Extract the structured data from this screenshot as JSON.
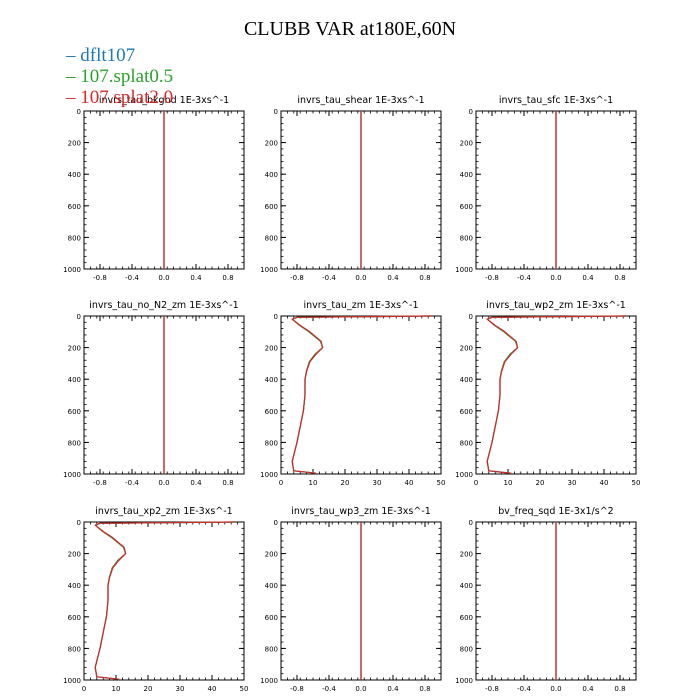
{
  "figure": {
    "title": "CLUBB VAR at180E,60N"
  },
  "legend": [
    {
      "label": "dflt107",
      "color": "#1f77b4"
    },
    {
      "label": "107.splat0.5",
      "color": "#2ca02c"
    },
    {
      "label": "107.splat2.0",
      "color": "#d62728"
    }
  ],
  "chart_data": [
    {
      "type": "line",
      "title": "invrs_tau_bkgnd   1E-3xs^-1",
      "xlim": [
        -1,
        1
      ],
      "ylim": [
        1000,
        0
      ],
      "xticks": [
        -0.8,
        -0.4,
        0.0,
        0.4,
        0.8
      ],
      "xtick_labels": [
        "-0.8",
        "-0.4",
        "0.0",
        "0.4",
        "0.8"
      ],
      "yticks": [
        0,
        200,
        400,
        600,
        800,
        1000
      ],
      "ytick_labels": [
        "0",
        "200",
        "400",
        "600",
        "800",
        "1000"
      ],
      "series": [
        {
          "color": "#1f77b4",
          "x": [
            0,
            0
          ],
          "y": [
            0,
            1000
          ]
        },
        {
          "color": "#2ca02c",
          "x": [
            0,
            0
          ],
          "y": [
            0,
            1000
          ]
        },
        {
          "color": "#d62728",
          "x": [
            0,
            0
          ],
          "y": [
            0,
            1000
          ]
        }
      ]
    },
    {
      "type": "line",
      "title": "invrs_tau_shear   1E-3xs^-1",
      "xlim": [
        -1,
        1
      ],
      "ylim": [
        1000,
        0
      ],
      "xticks": [
        -0.8,
        -0.4,
        0.0,
        0.4,
        0.8
      ],
      "xtick_labels": [
        "-0.8",
        "-0.4",
        "0.0",
        "0.4",
        "0.8"
      ],
      "yticks": [
        0,
        200,
        400,
        600,
        800,
        1000
      ],
      "ytick_labels": [
        "0",
        "200",
        "400",
        "600",
        "800",
        "1000"
      ],
      "series": [
        {
          "color": "#1f77b4",
          "x": [
            0,
            0
          ],
          "y": [
            0,
            1000
          ]
        },
        {
          "color": "#2ca02c",
          "x": [
            0,
            0
          ],
          "y": [
            0,
            1000
          ]
        },
        {
          "color": "#d62728",
          "x": [
            0,
            0
          ],
          "y": [
            0,
            1000
          ]
        }
      ]
    },
    {
      "type": "line",
      "title": "invrs_tau_sfc   1E-3xs^-1",
      "xlim": [
        -1,
        1
      ],
      "ylim": [
        1000,
        0
      ],
      "xticks": [
        -0.8,
        -0.4,
        0.0,
        0.4,
        0.8
      ],
      "xtick_labels": [
        "-0.8",
        "-0.4",
        "0.0",
        "0.4",
        "0.8"
      ],
      "yticks": [
        0,
        200,
        400,
        600,
        800,
        1000
      ],
      "ytick_labels": [
        "0",
        "200",
        "400",
        "600",
        "800",
        "1000"
      ],
      "series": [
        {
          "color": "#1f77b4",
          "x": [
            0,
            0
          ],
          "y": [
            0,
            1000
          ]
        },
        {
          "color": "#2ca02c",
          "x": [
            0,
            0
          ],
          "y": [
            0,
            1000
          ]
        },
        {
          "color": "#d62728",
          "x": [
            0,
            0
          ],
          "y": [
            0,
            1000
          ]
        }
      ]
    },
    {
      "type": "line",
      "title": "invrs_tau_no_N2_zm   1E-3xs^-1",
      "xlim": [
        -1,
        1
      ],
      "ylim": [
        1000,
        0
      ],
      "xticks": [
        -0.8,
        -0.4,
        0.0,
        0.4,
        0.8
      ],
      "xtick_labels": [
        "-0.8",
        "-0.4",
        "0.0",
        "0.4",
        "0.8"
      ],
      "yticks": [
        0,
        200,
        400,
        600,
        800,
        1000
      ],
      "ytick_labels": [
        "0",
        "200",
        "400",
        "600",
        "800",
        "1000"
      ],
      "series": [
        {
          "color": "#1f77b4",
          "x": [
            0,
            0
          ],
          "y": [
            0,
            1000
          ]
        },
        {
          "color": "#2ca02c",
          "x": [
            0,
            0
          ],
          "y": [
            0,
            1000
          ]
        },
        {
          "color": "#d62728",
          "x": [
            0,
            0
          ],
          "y": [
            0,
            1000
          ]
        }
      ]
    },
    {
      "type": "line",
      "title": "invrs_tau_zm   1E-3xs^-1",
      "xlim": [
        0,
        50
      ],
      "ylim": [
        1000,
        0
      ],
      "xticks": [
        0,
        10,
        20,
        30,
        40,
        50
      ],
      "xtick_labels": [
        "0",
        "10",
        "20",
        "30",
        "40",
        "50"
      ],
      "yticks": [
        0,
        200,
        400,
        600,
        800,
        1000
      ],
      "ytick_labels": [
        "0",
        "200",
        "400",
        "600",
        "800",
        "1000"
      ],
      "series": [
        {
          "color": "#1f77b4",
          "x": [
            47,
            5,
            3.5,
            6,
            9,
            12.5,
            13,
            11,
            9,
            8,
            7.5,
            7.5,
            7,
            6,
            5,
            3.5,
            4,
            11
          ],
          "y": [
            0,
            8,
            20,
            60,
            100,
            160,
            200,
            240,
            290,
            350,
            400,
            500,
            600,
            700,
            800,
            920,
            980,
            995
          ]
        },
        {
          "color": "#2ca02c",
          "x": [
            47,
            5,
            3.5,
            5.8,
            8.7,
            12.3,
            13,
            10.7,
            8.8,
            7.9,
            7.5,
            7.5,
            7,
            6,
            5,
            3.5,
            4,
            11
          ],
          "y": [
            0,
            8,
            20,
            60,
            100,
            160,
            200,
            240,
            290,
            350,
            400,
            500,
            600,
            700,
            800,
            920,
            980,
            995
          ]
        },
        {
          "color": "#d62728",
          "x": [
            47,
            5,
            3.5,
            6,
            9,
            12.5,
            13,
            11,
            9,
            8,
            7.5,
            7.5,
            7,
            6,
            5,
            3.5,
            4,
            11
          ],
          "y": [
            0,
            8,
            20,
            60,
            100,
            160,
            200,
            240,
            290,
            350,
            400,
            500,
            600,
            700,
            800,
            920,
            980,
            995
          ]
        }
      ]
    },
    {
      "type": "line",
      "title": "invrs_tau_wp2_zm   1E-3xs^-1",
      "xlim": [
        0,
        50
      ],
      "ylim": [
        1000,
        0
      ],
      "xticks": [
        0,
        10,
        20,
        30,
        40,
        50
      ],
      "xtick_labels": [
        "0",
        "10",
        "20",
        "30",
        "40",
        "50"
      ],
      "yticks": [
        0,
        200,
        400,
        600,
        800,
        1000
      ],
      "ytick_labels": [
        "0",
        "200",
        "400",
        "600",
        "800",
        "1000"
      ],
      "series": [
        {
          "color": "#1f77b4",
          "x": [
            47,
            5,
            3.5,
            6,
            9,
            12.5,
            13,
            11,
            9,
            8,
            7.5,
            7.5,
            7,
            6,
            5,
            3.5,
            4,
            11
          ],
          "y": [
            0,
            8,
            20,
            60,
            100,
            160,
            200,
            240,
            290,
            350,
            400,
            500,
            600,
            700,
            800,
            920,
            980,
            995
          ]
        },
        {
          "color": "#2ca02c",
          "x": [
            47,
            5,
            3.5,
            5.8,
            8.7,
            12.3,
            13,
            10.7,
            8.8,
            7.9,
            7.5,
            7.5,
            7,
            6,
            5,
            3.5,
            4,
            11
          ],
          "y": [
            0,
            8,
            20,
            60,
            100,
            160,
            200,
            240,
            290,
            350,
            400,
            500,
            600,
            700,
            800,
            920,
            980,
            995
          ]
        },
        {
          "color": "#d62728",
          "x": [
            47,
            5,
            3.5,
            6,
            9,
            12.5,
            13,
            11,
            9,
            8,
            7.5,
            7.5,
            7,
            6,
            5,
            3.5,
            4,
            11
          ],
          "y": [
            0,
            8,
            20,
            60,
            100,
            160,
            200,
            240,
            290,
            350,
            400,
            500,
            600,
            700,
            800,
            920,
            980,
            995
          ]
        }
      ]
    },
    {
      "type": "line",
      "title": "invrs_tau_xp2_zm   1E-3xs^-1",
      "xlim": [
        0,
        50
      ],
      "ylim": [
        1000,
        0
      ],
      "xticks": [
        0,
        10,
        20,
        30,
        40,
        50
      ],
      "xtick_labels": [
        "0",
        "10",
        "20",
        "30",
        "40",
        "50"
      ],
      "yticks": [
        0,
        200,
        400,
        600,
        800,
        1000
      ],
      "ytick_labels": [
        "0",
        "200",
        "400",
        "600",
        "800",
        "1000"
      ],
      "series": [
        {
          "color": "#1f77b4",
          "x": [
            47,
            5,
            3.5,
            6,
            9,
            12.5,
            13,
            11,
            9,
            8,
            7.5,
            7.5,
            7,
            6,
            5,
            3.5,
            4,
            11
          ],
          "y": [
            0,
            8,
            20,
            60,
            100,
            160,
            200,
            240,
            290,
            350,
            400,
            500,
            600,
            700,
            800,
            920,
            980,
            995
          ]
        },
        {
          "color": "#2ca02c",
          "x": [
            47,
            5,
            3.5,
            5.8,
            8.7,
            12.3,
            13,
            10.7,
            8.8,
            7.9,
            7.5,
            7.5,
            7,
            6,
            5,
            3.5,
            4,
            11
          ],
          "y": [
            0,
            8,
            20,
            60,
            100,
            160,
            200,
            240,
            290,
            350,
            400,
            500,
            600,
            700,
            800,
            920,
            980,
            995
          ]
        },
        {
          "color": "#d62728",
          "x": [
            47,
            5,
            3.5,
            6,
            9,
            12.5,
            13,
            11,
            9,
            8,
            7.5,
            7.5,
            7,
            6,
            5,
            3.5,
            4,
            11
          ],
          "y": [
            0,
            8,
            20,
            60,
            100,
            160,
            200,
            240,
            290,
            350,
            400,
            500,
            600,
            700,
            800,
            920,
            980,
            995
          ]
        }
      ]
    },
    {
      "type": "line",
      "title": "invrs_tau_wp3_zm   1E-3xs^-1",
      "xlim": [
        -1,
        1
      ],
      "ylim": [
        1000,
        0
      ],
      "xticks": [
        -0.8,
        -0.4,
        0.0,
        0.4,
        0.8
      ],
      "xtick_labels": [
        "-0.8",
        "-0.4",
        "0.0",
        "0.4",
        "0.8"
      ],
      "yticks": [
        0,
        200,
        400,
        600,
        800,
        1000
      ],
      "ytick_labels": [
        "0",
        "200",
        "400",
        "600",
        "800",
        "1000"
      ],
      "series": [
        {
          "color": "#1f77b4",
          "x": [
            0,
            0
          ],
          "y": [
            0,
            1000
          ]
        },
        {
          "color": "#2ca02c",
          "x": [
            0,
            0
          ],
          "y": [
            0,
            1000
          ]
        },
        {
          "color": "#d62728",
          "x": [
            0,
            0
          ],
          "y": [
            0,
            1000
          ]
        }
      ]
    },
    {
      "type": "line",
      "title": "bv_freq_sqd   1E-3x1/s^2",
      "xlim": [
        -1,
        1
      ],
      "ylim": [
        1000,
        0
      ],
      "xticks": [
        -0.8,
        -0.4,
        0.0,
        0.4,
        0.8
      ],
      "xtick_labels": [
        "-0.8",
        "-0.4",
        "0.0",
        "0.4",
        "0.8"
      ],
      "yticks": [
        0,
        200,
        400,
        600,
        800,
        1000
      ],
      "ytick_labels": [
        "0",
        "200",
        "400",
        "600",
        "800",
        "1000"
      ],
      "series": [
        {
          "color": "#1f77b4",
          "x": [
            0,
            0
          ],
          "y": [
            0,
            1000
          ]
        },
        {
          "color": "#2ca02c",
          "x": [
            0,
            0
          ],
          "y": [
            0,
            1000
          ]
        },
        {
          "color": "#d62728",
          "x": [
            0,
            0
          ],
          "y": [
            0,
            1000
          ]
        }
      ]
    }
  ]
}
